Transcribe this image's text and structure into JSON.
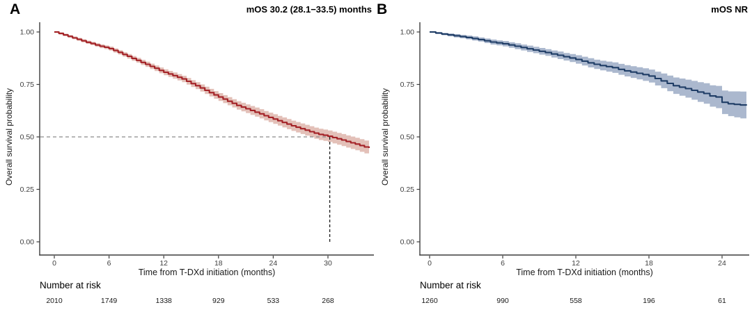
{
  "chart_data": [
    {
      "type": "line",
      "subtype": "kaplan-meier-step",
      "panel_label": "A",
      "title": "mOS 30.2 (28.1−33.5) months",
      "xlabel": "Time from T-DXd initiation (months)",
      "ylabel": "Overall survival probability",
      "risk_label": "Number at risk",
      "xlim": [
        0,
        35
      ],
      "ylim": [
        0,
        1
      ],
      "x_ticks": [
        0,
        6,
        12,
        18,
        24,
        30
      ],
      "y_ticks": [
        0,
        0.25,
        0.5,
        0.75,
        1
      ],
      "number_at_risk": [
        2010,
        1749,
        1338,
        929,
        533,
        268
      ],
      "median": {
        "time": 30.2,
        "survival": 0.5
      },
      "median_dash_colors": {
        "horizontal": "#8a8a8a",
        "vertical": "#1a1a1a"
      },
      "series": {
        "color": "#a32126",
        "ci_fill": "#b04a35",
        "ci_opacity": 0.35,
        "ci_half_linear": [
          0.005,
          0.031
        ],
        "t": [
          0,
          0.5,
          1,
          1.5,
          2,
          2.5,
          3,
          3.5,
          4,
          4.5,
          5,
          5.5,
          6,
          6.5,
          7,
          7.5,
          8,
          8.5,
          9,
          9.5,
          10,
          10.5,
          11,
          11.5,
          12,
          12.5,
          13,
          13.5,
          14,
          14.5,
          15,
          15.5,
          16,
          16.5,
          17,
          17.5,
          18,
          18.5,
          19,
          19.5,
          20,
          20.5,
          21,
          21.5,
          22,
          22.5,
          23,
          23.5,
          24,
          24.5,
          25,
          25.5,
          26,
          26.5,
          27,
          27.5,
          28,
          28.5,
          29,
          29.5,
          30,
          30.5,
          31,
          31.5,
          32,
          32.5,
          33,
          33.5,
          34,
          34.5
        ],
        "s": [
          1.0,
          0.993,
          0.986,
          0.979,
          0.972,
          0.965,
          0.958,
          0.951,
          0.945,
          0.938,
          0.932,
          0.927,
          0.921,
          0.912,
          0.903,
          0.893,
          0.884,
          0.874,
          0.865,
          0.855,
          0.846,
          0.836,
          0.827,
          0.817,
          0.808,
          0.8,
          0.792,
          0.784,
          0.776,
          0.765,
          0.754,
          0.744,
          0.733,
          0.722,
          0.711,
          0.7,
          0.69,
          0.68,
          0.67,
          0.66,
          0.65,
          0.642,
          0.634,
          0.626,
          0.618,
          0.61,
          0.601,
          0.593,
          0.585,
          0.577,
          0.569,
          0.561,
          0.553,
          0.546,
          0.539,
          0.532,
          0.525,
          0.518,
          0.512,
          0.508,
          0.503,
          0.497,
          0.491,
          0.485,
          0.478,
          0.472,
          0.466,
          0.459,
          0.452,
          0.447
        ]
      }
    },
    {
      "type": "line",
      "subtype": "kaplan-meier-step",
      "panel_label": "B",
      "title": "mOS NR",
      "xlabel": "Time from T-DXd initiation (months)",
      "ylabel": "Overall survival probability",
      "risk_label": "Number at risk",
      "xlim": [
        0,
        26.2
      ],
      "ylim": [
        0,
        1
      ],
      "x_ticks": [
        0,
        6,
        12,
        18,
        24
      ],
      "y_ticks": [
        0,
        0.25,
        0.5,
        0.75,
        1
      ],
      "number_at_risk": [
        1260,
        990,
        558,
        196,
        61
      ],
      "median": null,
      "series": {
        "color": "#1f3d66",
        "ci_fill": "#38558a",
        "ci_opacity": 0.42,
        "ci_half": [
          0.004,
          0.005,
          0.006,
          0.007,
          0.008,
          0.008,
          0.009,
          0.01,
          0.01,
          0.011,
          0.012,
          0.012,
          0.013,
          0.013,
          0.014,
          0.014,
          0.015,
          0.015,
          0.016,
          0.016,
          0.017,
          0.018,
          0.018,
          0.019,
          0.02,
          0.021,
          0.022,
          0.022,
          0.023,
          0.024,
          0.025,
          0.026,
          0.027,
          0.028,
          0.029,
          0.03,
          0.031,
          0.033,
          0.035,
          0.037,
          0.039,
          0.041,
          0.043,
          0.045,
          0.047,
          0.049,
          0.051,
          0.053,
          0.056,
          0.059,
          0.062,
          0.064,
          0.065
        ],
        "t": [
          0,
          0.5,
          1,
          1.5,
          2,
          2.5,
          3,
          3.5,
          4,
          4.5,
          5,
          5.5,
          6,
          6.5,
          7,
          7.5,
          8,
          8.5,
          9,
          9.5,
          10,
          10.5,
          11,
          11.5,
          12,
          12.5,
          13,
          13.5,
          14,
          14.5,
          15,
          15.5,
          16,
          16.5,
          17,
          17.5,
          18,
          18.5,
          19,
          19.5,
          20,
          20.5,
          21,
          21.5,
          22,
          22.5,
          23,
          23.5,
          24,
          24.5,
          25,
          25.5,
          26
        ],
        "s": [
          1.0,
          0.995,
          0.99,
          0.986,
          0.982,
          0.978,
          0.974,
          0.969,
          0.964,
          0.958,
          0.952,
          0.948,
          0.944,
          0.938,
          0.932,
          0.926,
          0.92,
          0.914,
          0.908,
          0.902,
          0.895,
          0.889,
          0.882,
          0.876,
          0.869,
          0.861,
          0.853,
          0.846,
          0.84,
          0.835,
          0.83,
          0.822,
          0.815,
          0.809,
          0.803,
          0.797,
          0.79,
          0.778,
          0.767,
          0.755,
          0.744,
          0.737,
          0.73,
          0.722,
          0.714,
          0.707,
          0.695,
          0.69,
          0.665,
          0.658,
          0.655,
          0.652,
          0.65
        ]
      }
    }
  ],
  "style": {
    "axis_line_color": "#3c3c3c",
    "tick_text_color": "#404040",
    "risk_number_color": "#1a1a1a"
  }
}
